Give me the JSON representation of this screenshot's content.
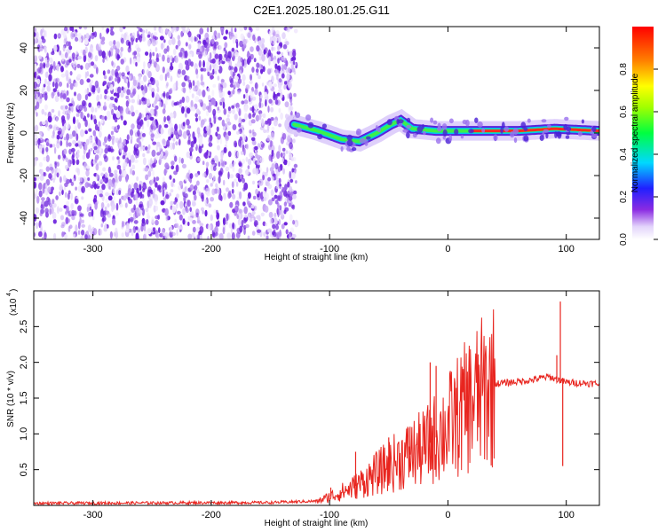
{
  "title": "C2E1.2025.180.01.25.G11",
  "chart_data": [
    {
      "type": "heatmap",
      "xlabel": "Height of straight line (km)",
      "ylabel": "Frequency (Hz)",
      "xlim": [
        -350,
        128
      ],
      "ylim": [
        -50,
        50
      ],
      "x_ticks": [
        -300,
        -200,
        -100,
        0,
        100
      ],
      "y_ticks": [
        -40,
        -20,
        0,
        20,
        40
      ],
      "colorbar": {
        "label": "Normalized spectral amplitude",
        "range": [
          0,
          1
        ],
        "ticks": [
          "0.0",
          "0.2",
          "0.4",
          "0.6",
          "0.8"
        ]
      },
      "signal_track": [
        {
          "x": -130,
          "y": 4
        },
        {
          "x": -110,
          "y": 1
        },
        {
          "x": -90,
          "y": -3
        },
        {
          "x": -75,
          "y": -4
        },
        {
          "x": -60,
          "y": 0
        },
        {
          "x": -48,
          "y": 4
        },
        {
          "x": -40,
          "y": 6
        },
        {
          "x": -30,
          "y": 2
        },
        {
          "x": -10,
          "y": 1
        },
        {
          "x": 20,
          "y": 1
        },
        {
          "x": 60,
          "y": 1
        },
        {
          "x": 90,
          "y": 2
        },
        {
          "x": 128,
          "y": 1
        }
      ]
    },
    {
      "type": "line",
      "xlabel": "Height of straight line (km)",
      "ylabel": "SNR (10 * v/v)",
      "y_multiplier": "(x10",
      "y_multiplier_exp": "4",
      "xlim": [
        -350,
        128
      ],
      "ylim": [
        0,
        3.0
      ],
      "x_ticks": [
        -300,
        -200,
        -100,
        0,
        100
      ],
      "y_ticks": [
        "0.5",
        "1.0",
        "1.5",
        "2.0",
        "2.5"
      ],
      "line_color": "#e8251f",
      "envelope": [
        {
          "x": -350,
          "y": 0.03
        },
        {
          "x": -150,
          "y": 0.04
        },
        {
          "x": -110,
          "y": 0.06
        },
        {
          "x": -95,
          "y": 0.15
        },
        {
          "x": -80,
          "y": 0.25
        },
        {
          "x": -60,
          "y": 0.45
        },
        {
          "x": -40,
          "y": 0.65
        },
        {
          "x": -20,
          "y": 0.8
        },
        {
          "x": 0,
          "y": 1.1
        },
        {
          "x": 20,
          "y": 1.45
        },
        {
          "x": 40,
          "y": 1.7
        },
        {
          "x": 70,
          "y": 1.75
        },
        {
          "x": 85,
          "y": 1.8
        },
        {
          "x": 100,
          "y": 1.72
        },
        {
          "x": 128,
          "y": 1.7
        }
      ],
      "spikes": [
        {
          "x": -99,
          "y": 0.25
        },
        {
          "x": -78,
          "y": 0.75
        },
        {
          "x": -50,
          "y": 0.95
        },
        {
          "x": -32,
          "y": 1.1
        },
        {
          "x": -15,
          "y": 2.0
        },
        {
          "x": -10,
          "y": 1.95
        },
        {
          "x": 92,
          "y": 2.1
        },
        {
          "x": 95,
          "y": 2.85
        },
        {
          "x": 97,
          "y": 0.55
        }
      ]
    }
  ]
}
